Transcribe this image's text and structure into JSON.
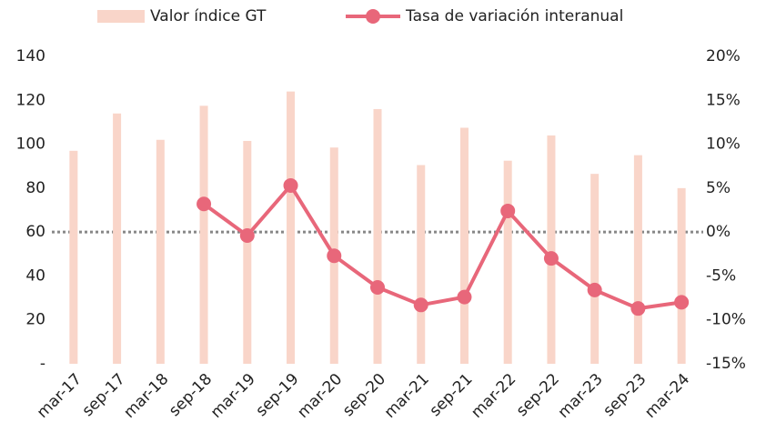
{
  "chart_data": {
    "type": "bar_line",
    "categories": [
      "mar-17",
      "sep-17",
      "mar-18",
      "sep-18",
      "mar-19",
      "sep-19",
      "mar-20",
      "sep-20",
      "mar-21",
      "sep-21",
      "mar-22",
      "sep-22",
      "mar-23",
      "sep-23",
      "mar-24"
    ],
    "series": [
      {
        "name": "Valor índice GT",
        "type": "bar",
        "color": "#f9d5c9",
        "values": [
          97,
          114,
          102,
          117.5,
          101.5,
          124,
          98.5,
          116,
          90.5,
          107.5,
          92.5,
          104,
          86.5,
          95,
          80
        ]
      },
      {
        "name": "Tasa de variación interanual",
        "type": "line",
        "axis": "y2",
        "color": "#e8677a",
        "values": [
          null,
          null,
          null,
          3.2,
          -0.4,
          5.3,
          -2.7,
          -6.3,
          -8.3,
          -7.4,
          2.4,
          -3.0,
          -6.6,
          -8.7,
          -8.0
        ]
      }
    ],
    "ylim": [
      0,
      140
    ],
    "yticks": [
      {
        "value": 0,
        "label": "-"
      },
      20,
      40,
      60,
      80,
      100,
      120,
      140
    ],
    "y2lim": [
      -15,
      20
    ],
    "y2ticks": [
      {
        "value": -15,
        "label": "-15%"
      },
      {
        "value": -10,
        "label": "-10%"
      },
      {
        "value": -5,
        "label": "-5%"
      },
      {
        "value": 0,
        "label": "0%"
      },
      {
        "value": 5,
        "label": "5%"
      },
      {
        "value": 10,
        "label": "10%"
      },
      {
        "value": 15,
        "label": "15%"
      },
      {
        "value": 20,
        "label": "20%"
      }
    ],
    "legend": "top"
  }
}
